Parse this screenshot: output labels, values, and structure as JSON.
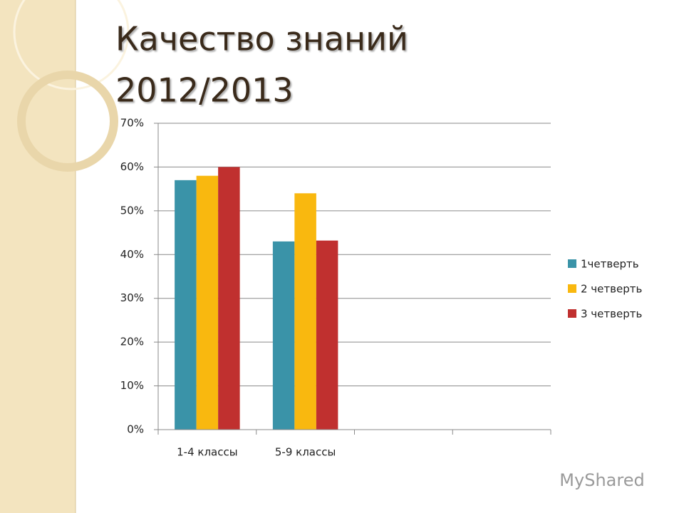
{
  "chart_data": {
    "type": "bar",
    "title": [
      "Качество знаний",
      "2012/2013"
    ],
    "categories": [
      "1-4 классы",
      "5-9 классы",
      null,
      null
    ],
    "series": [
      {
        "name": "1четверть",
        "color": "#3a93a8",
        "values": [
          57,
          43,
          null,
          null
        ]
      },
      {
        "name": "2 четверть",
        "color": "#f9b80f",
        "values": [
          58,
          54,
          null,
          null
        ]
      },
      {
        "name": "3 четверть",
        "color": "#c0302f",
        "values": [
          60,
          43.2,
          null,
          null
        ]
      }
    ],
    "ylim": [
      0,
      70
    ],
    "yticks": [
      {
        "value": 0,
        "label": "0%"
      },
      {
        "value": 10,
        "label": "10%"
      },
      {
        "value": 20,
        "label": "20%"
      },
      {
        "value": 30,
        "label": "30%"
      },
      {
        "value": 40,
        "label": "40%"
      },
      {
        "value": 50,
        "label": "50%"
      },
      {
        "value": 60,
        "label": "60%"
      },
      {
        "value": 70,
        "label": "70%"
      }
    ],
    "grid": true,
    "legend": "right"
  },
  "watermark": "MyShared"
}
